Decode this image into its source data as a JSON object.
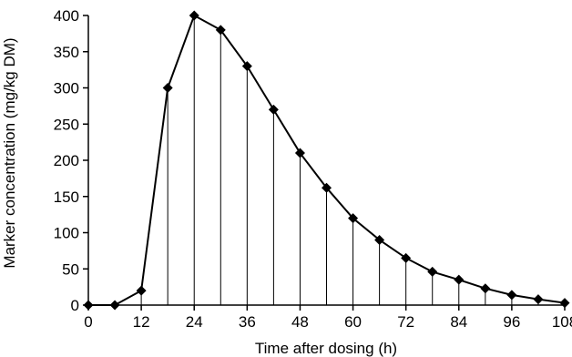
{
  "chart_data": {
    "type": "line",
    "title": "",
    "xlabel": "Time after dosing (h)",
    "ylabel": "Marker concentration (mg/kg DM)",
    "xlim": [
      0,
      108
    ],
    "ylim": [
      0,
      400
    ],
    "xticks": [
      0,
      12,
      24,
      36,
      48,
      60,
      72,
      84,
      96,
      108
    ],
    "yticks": [
      0,
      50,
      100,
      150,
      200,
      250,
      300,
      350,
      400
    ],
    "grid": false,
    "drop_lines": true,
    "marker": "diamond",
    "series": [
      {
        "x": [
          0,
          6,
          12,
          18,
          24,
          30,
          36,
          42,
          48,
          54,
          60,
          66,
          72,
          78,
          84,
          90,
          96,
          102,
          108
        ],
        "y": [
          0,
          0,
          20,
          300,
          400,
          380,
          330,
          270,
          210,
          162,
          120,
          90,
          65,
          46,
          35,
          23,
          14,
          8,
          3
        ]
      }
    ]
  }
}
